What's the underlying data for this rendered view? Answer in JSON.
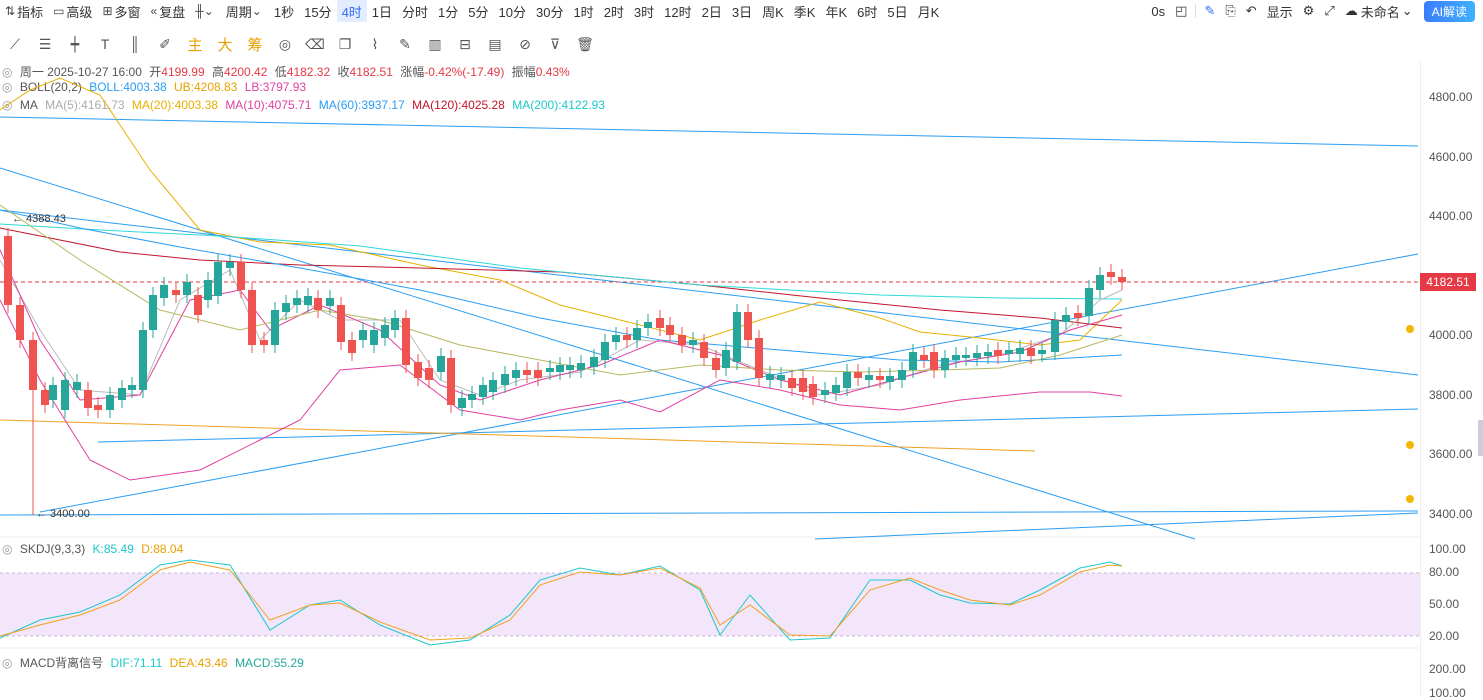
{
  "toolbar": {
    "left": [
      {
        "icon": "indicator-icon",
        "label": "指标"
      },
      {
        "icon": "advanced-icon",
        "label": "高级"
      },
      {
        "icon": "multiwindow-icon",
        "label": "多窗"
      },
      {
        "icon": "replay-icon",
        "label": "复盘"
      }
    ],
    "chart_type_icon": "candlestick-icon",
    "period_label": "周期",
    "periods": [
      "1秒",
      "15分",
      "4时",
      "1日",
      "分时",
      "1分",
      "5分",
      "10分",
      "30分",
      "1时",
      "2时",
      "3时",
      "12时",
      "2日",
      "3日",
      "周K",
      "季K",
      "年K",
      "6时",
      "5日",
      "月K"
    ],
    "active_period": "4时",
    "right": {
      "counter": "0s",
      "display_label": "显示",
      "workspace": "未命名",
      "ai_label": "AI解读"
    }
  },
  "drawing_tools": [
    "trend-line-icon",
    "parallel-lines-icon",
    "horizontal-line-icon",
    "text-tool-icon",
    "fib-tool-icon",
    "brush-icon",
    "主",
    "大",
    "筹",
    "magnet-icon",
    "eraser-icon",
    "duplicate-icon",
    "ruler-icon",
    "pencil-icon",
    "measure-icon",
    "lock-icon",
    "note-icon",
    "link-icon",
    "filter-icon",
    "trash-icon"
  ],
  "ohlc": {
    "date": "周一 2025-10-27 16:00",
    "open_label": "开",
    "open": "4199.99",
    "high_label": "高",
    "high": "4200.42",
    "low_label": "低",
    "low": "4182.32",
    "close_label": "收",
    "close": "4182.51",
    "change_label": "涨幅",
    "change": "-0.42%(-17.49)",
    "amp_label": "振幅",
    "amp": "0.43%"
  },
  "boll": {
    "name": "BOLL(20,2)",
    "mid": "BOLL:4003.38",
    "ub": "UB:4208.83",
    "lb": "LB:3797.93"
  },
  "ma": {
    "name": "MA",
    "ma5": "MA(5):4161.73",
    "ma20": "MA(20):4003.38",
    "ma10": "MA(10):4075.71",
    "ma60": "MA(60):3937.17",
    "ma120": "MA(120):4025.28",
    "ma200": "MA(200):4122.93"
  },
  "price_axis": [
    "4800.00",
    "4600.00",
    "4400.00",
    "4000.00",
    "3800.00",
    "3600.00",
    "3400.00"
  ],
  "current_price": "4182.51",
  "annotations": {
    "high_marker": "4388.43",
    "low_marker": "3400.00"
  },
  "skdj": {
    "name": "SKDJ(9,3,3)",
    "k": "K:85.49",
    "d": "D:88.04",
    "axis": [
      "100.00",
      "80.00",
      "50.00",
      "20.00"
    ]
  },
  "macd": {
    "name": "MACD背离信号",
    "dif": "DIF:71.11",
    "dea": "DEA:43.46",
    "macd": "MACD:55.29",
    "axis": [
      "200.00",
      "100.00"
    ]
  },
  "colors": {
    "up": "#26a69a",
    "down": "#ef5350",
    "accent": "#2f6bff",
    "ma5": "#bbbbbb",
    "ma10": "#e040a0",
    "ma20": "#f0b400",
    "ma60": "#2a9df4",
    "ma120": "#c0152b",
    "ma200": "#30d8d8"
  }
}
